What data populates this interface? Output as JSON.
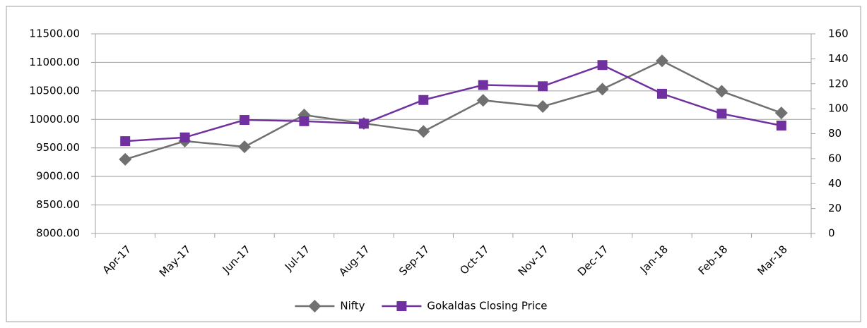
{
  "chart_data": {
    "type": "line",
    "categories": [
      "Apr-17",
      "May-17",
      "Jun-17",
      "Jul-17",
      "Aug-17",
      "Sep-17",
      "Oct-17",
      "Nov-17",
      "Dec-17",
      "Jan-18",
      "Feb-18",
      "Mar-18"
    ],
    "series": [
      {
        "name": "Nifty",
        "color": "#707070",
        "marker": "diamond",
        "values": [
          9300,
          9620,
          9520,
          10077,
          9930,
          9788,
          10335,
          10226,
          10530,
          11027,
          10493,
          10114
        ]
      },
      {
        "name": "Gokaldas Closing Price",
        "color": "#7030a0",
        "marker": "square",
        "axis": "y2",
        "values": [
          74,
          77,
          91,
          90,
          88,
          107,
          119,
          118,
          135,
          112,
          96,
          86.5
        ]
      }
    ],
    "ylim": [
      8000,
      11500
    ],
    "yticks": [
      {
        "value": 8000,
        "label": "8000.00"
      },
      {
        "value": 8500,
        "label": "8500.00"
      },
      {
        "value": 9000,
        "label": "9000.00"
      },
      {
        "value": 9500,
        "label": "9500.00"
      },
      {
        "value": 10000,
        "label": "10000.00"
      },
      {
        "value": 10500,
        "label": "10500.00"
      },
      {
        "value": 11000,
        "label": "11000.00"
      },
      {
        "value": 11500,
        "label": "11500.00"
      }
    ],
    "y2lim": [
      0,
      160
    ],
    "y2ticks": [
      0,
      20,
      40,
      60,
      80,
      100,
      120,
      140,
      160
    ],
    "grid": true,
    "legend": "bottom"
  }
}
